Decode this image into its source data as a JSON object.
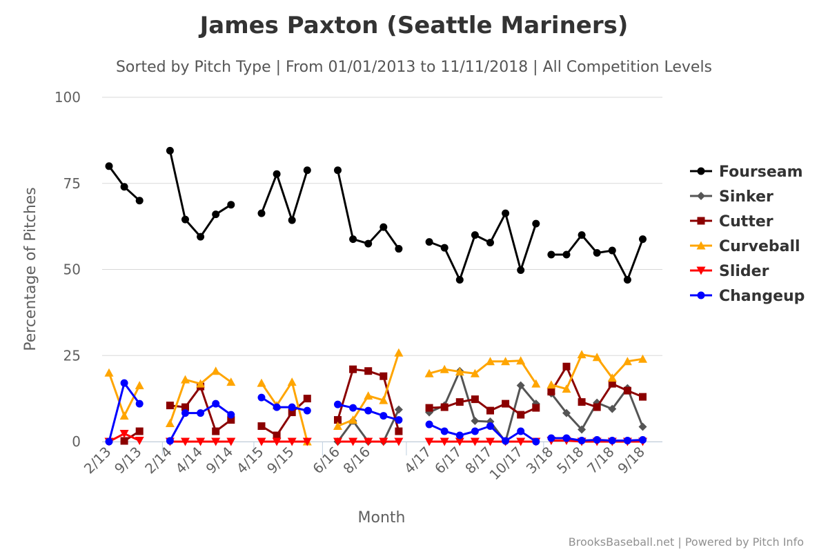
{
  "chart_data": {
    "type": "line",
    "title": "James Paxton (Seattle Mariners)",
    "subtitle": "Sorted by Pitch Type | From 01/01/2013 to 11/11/2018 | All Competition Levels",
    "xlabel": "Month",
    "ylabel": "Percentage of Pitches",
    "ylim": [
      0,
      100
    ],
    "yticks": [
      0,
      25,
      50,
      75,
      100
    ],
    "grid": true,
    "legend_position": "right",
    "credits": "BrooksBaseball.net | Powered by Pitch Info",
    "x_tick_labels": [
      {
        "x": 0,
        "label": "2/13"
      },
      {
        "x": 2,
        "label": "9/13"
      },
      {
        "x": 4,
        "label": "2/14"
      },
      {
        "x": 6,
        "label": "4/14"
      },
      {
        "x": 8,
        "label": "9/14"
      },
      {
        "x": 10,
        "label": "4/15"
      },
      {
        "x": 12,
        "label": "9/15"
      },
      {
        "x": 15,
        "label": "6/16"
      },
      {
        "x": 17,
        "label": "8/16"
      },
      {
        "x": 21,
        "label": "4/17"
      },
      {
        "x": 23,
        "label": "6/17"
      },
      {
        "x": 25,
        "label": "8/17"
      },
      {
        "x": 27,
        "label": "10/17"
      },
      {
        "x": 29,
        "label": "3/18"
      },
      {
        "x": 31,
        "label": "5/18"
      },
      {
        "x": 33,
        "label": "7/18"
      },
      {
        "x": 35,
        "label": "9/18"
      }
    ],
    "season_breaks": [
      3.5,
      9.5,
      14,
      19.5,
      28.5
    ],
    "series": [
      {
        "name": "Fourseam",
        "color": "#000000",
        "marker": "circle",
        "segments": [
          [
            [
              0,
              80
            ],
            [
              1,
              74
            ],
            [
              2,
              70
            ]
          ],
          [
            [
              4,
              84.5
            ],
            [
              5,
              64.5
            ],
            [
              6,
              59.5
            ],
            [
              7,
              66
            ],
            [
              8,
              68.8
            ]
          ],
          [
            [
              10,
              66.3
            ],
            [
              11,
              77.7
            ],
            [
              12,
              64.3
            ],
            [
              13,
              78.8
            ]
          ],
          [
            [
              15,
              78.8
            ],
            [
              16,
              58.8
            ],
            [
              17,
              57.5
            ],
            [
              18,
              62.3
            ],
            [
              19,
              56
            ]
          ],
          [
            [
              21,
              58
            ],
            [
              22,
              56.3
            ],
            [
              23,
              47
            ],
            [
              24,
              60
            ],
            [
              25,
              57.8
            ],
            [
              26,
              66.3
            ],
            [
              27,
              49.8
            ],
            [
              28,
              63.3
            ]
          ],
          [
            [
              29,
              54.3
            ],
            [
              30,
              54.3
            ],
            [
              31,
              60
            ],
            [
              32,
              54.8
            ],
            [
              33,
              55.5
            ],
            [
              34,
              47
            ],
            [
              35,
              58.8
            ]
          ]
        ]
      },
      {
        "name": "Sinker",
        "color": "#555555",
        "marker": "diamond",
        "segments": [
          [
            [
              15,
              0
            ],
            [
              16,
              6
            ],
            [
              17,
              0
            ],
            [
              18,
              0
            ],
            [
              19,
              9.3
            ]
          ],
          [
            [
              21,
              8.5
            ],
            [
              22,
              10.5
            ],
            [
              23,
              20.5
            ],
            [
              24,
              6
            ],
            [
              25,
              5.8
            ],
            [
              26,
              0
            ],
            [
              27,
              16.3
            ],
            [
              28,
              11
            ]
          ],
          [
            [
              29,
              14
            ],
            [
              30,
              8.3
            ],
            [
              31,
              3.5
            ],
            [
              32,
              11.3
            ],
            [
              33,
              9.5
            ],
            [
              34,
              15.5
            ],
            [
              35,
              4.3
            ]
          ]
        ]
      },
      {
        "name": "Cutter",
        "color": "#8b0000",
        "marker": "square",
        "segments": [
          [
            [
              1,
              0.2
            ],
            [
              2,
              3
            ]
          ],
          [
            [
              4,
              10.5
            ],
            [
              5,
              10
            ],
            [
              6,
              16
            ],
            [
              7,
              3
            ],
            [
              8,
              6.3
            ]
          ],
          [
            [
              10,
              4.5
            ],
            [
              11,
              1.8
            ],
            [
              12,
              8.5
            ],
            [
              13,
              12.5
            ]
          ],
          [
            [
              15,
              6.3
            ],
            [
              16,
              21
            ],
            [
              17,
              20.5
            ],
            [
              18,
              19
            ],
            [
              19,
              3
            ]
          ],
          [
            [
              21,
              9.8
            ],
            [
              22,
              10
            ],
            [
              23,
              11.5
            ],
            [
              24,
              12.3
            ],
            [
              25,
              9
            ],
            [
              26,
              11
            ],
            [
              27,
              7.8
            ],
            [
              28,
              9.8
            ]
          ],
          [
            [
              29,
              14.5
            ],
            [
              30,
              21.8
            ],
            [
              31,
              11.5
            ],
            [
              32,
              10
            ],
            [
              33,
              16.8
            ],
            [
              34,
              14.8
            ],
            [
              35,
              13
            ]
          ]
        ]
      },
      {
        "name": "Curveball",
        "color": "#ffa500",
        "marker": "triangle",
        "segments": [
          [
            [
              0,
              20
            ],
            [
              1,
              7.5
            ],
            [
              2,
              16.3
            ]
          ],
          [
            [
              4,
              5.3
            ],
            [
              5,
              18
            ],
            [
              6,
              16.8
            ],
            [
              7,
              20.5
            ],
            [
              8,
              17.3
            ]
          ],
          [
            [
              10,
              17
            ],
            [
              11,
              10.5
            ],
            [
              12,
              17.3
            ],
            [
              13,
              0
            ]
          ],
          [
            [
              15,
              4.5
            ],
            [
              16,
              6.3
            ],
            [
              17,
              13.3
            ],
            [
              18,
              12
            ],
            [
              19,
              25.8
            ]
          ],
          [
            [
              21,
              19.8
            ],
            [
              22,
              21
            ],
            [
              23,
              20.3
            ],
            [
              24,
              19.8
            ],
            [
              25,
              23.3
            ],
            [
              26,
              23.3
            ],
            [
              27,
              23.5
            ],
            [
              28,
              16.8
            ]
          ],
          [
            [
              29,
              16.5
            ],
            [
              30,
              15.3
            ],
            [
              31,
              25.3
            ],
            [
              32,
              24.5
            ],
            [
              33,
              18.5
            ],
            [
              34,
              23.3
            ],
            [
              35,
              24
            ]
          ]
        ]
      },
      {
        "name": "Slider",
        "color": "#ff0000",
        "marker": "triangle-down",
        "segments": [
          [
            [
              0,
              0
            ],
            [
              1,
              2.3
            ],
            [
              2,
              0.3
            ]
          ],
          [
            [
              4,
              0
            ],
            [
              5,
              0
            ],
            [
              6,
              0
            ],
            [
              7,
              0
            ],
            [
              8,
              0
            ]
          ],
          [
            [
              10,
              0
            ],
            [
              11,
              0
            ],
            [
              12,
              0
            ],
            [
              13,
              0
            ]
          ],
          [
            [
              15,
              0
            ],
            [
              16,
              0
            ],
            [
              17,
              0
            ],
            [
              18,
              0
            ],
            [
              19,
              0
            ]
          ],
          [
            [
              21,
              0
            ],
            [
              22,
              0
            ],
            [
              23,
              0
            ],
            [
              24,
              0
            ],
            [
              25,
              0
            ],
            [
              26,
              0
            ],
            [
              27,
              0
            ],
            [
              28,
              0
            ]
          ],
          [
            [
              29,
              0.3
            ],
            [
              30,
              0.3
            ],
            [
              31,
              0
            ],
            [
              32,
              0
            ],
            [
              33,
              0
            ],
            [
              34,
              0
            ],
            [
              35,
              0
            ]
          ]
        ]
      },
      {
        "name": "Changeup",
        "color": "#0000ff",
        "marker": "circle",
        "segments": [
          [
            [
              0,
              0
            ],
            [
              1,
              17
            ],
            [
              2,
              11
            ]
          ],
          [
            [
              4,
              0.2
            ],
            [
              5,
              8.3
            ],
            [
              6,
              8.3
            ],
            [
              7,
              11
            ],
            [
              8,
              7.8
            ]
          ],
          [
            [
              10,
              12.8
            ],
            [
              11,
              10
            ],
            [
              12,
              10
            ],
            [
              13,
              9
            ]
          ],
          [
            [
              15,
              10.8
            ],
            [
              16,
              9.8
            ],
            [
              17,
              9
            ],
            [
              18,
              7.5
            ],
            [
              19,
              6.3
            ]
          ],
          [
            [
              21,
              5
            ],
            [
              22,
              3
            ],
            [
              23,
              1.8
            ],
            [
              24,
              3
            ],
            [
              25,
              4.5
            ],
            [
              26,
              0.2
            ],
            [
              27,
              3
            ],
            [
              28,
              0
            ]
          ],
          [
            [
              29,
              1
            ],
            [
              30,
              1
            ],
            [
              31,
              0.3
            ],
            [
              32,
              0.5
            ],
            [
              33,
              0.3
            ],
            [
              34,
              0.3
            ],
            [
              35,
              0.5
            ]
          ]
        ]
      }
    ]
  }
}
